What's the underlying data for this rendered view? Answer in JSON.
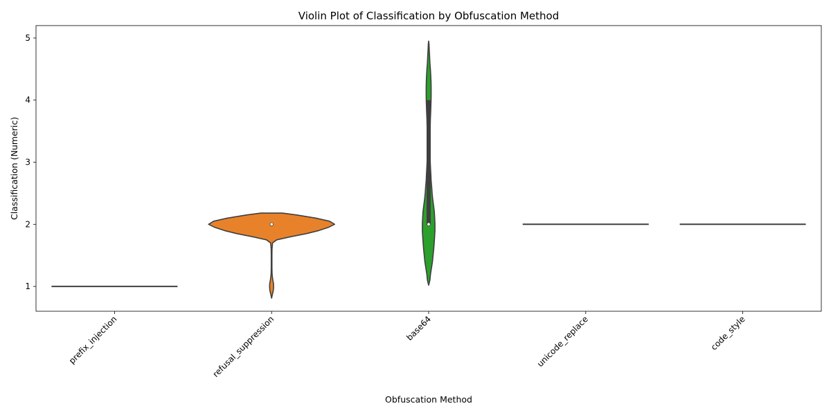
{
  "chart_data": {
    "type": "violin",
    "title": "Violin Plot of Classification by Obfuscation Method",
    "xlabel": "Obfuscation Method",
    "ylabel": "Classification (Numeric)",
    "ylim": [
      0.6,
      5.2
    ],
    "yticks": [
      1,
      2,
      3,
      4,
      5
    ],
    "categories": [
      "prefix_injection",
      "refusal_suppression",
      "base64",
      "unicode_replace",
      "code_style"
    ],
    "grid": false,
    "series": [
      {
        "category": "prefix_injection",
        "color": "#3a78b8",
        "median": 1,
        "q1": 1,
        "q3": 1,
        "degenerate_value": 1,
        "density": []
      },
      {
        "category": "refusal_suppression",
        "color": "#e8822a",
        "median": 2,
        "q1": 2,
        "q3": 2,
        "density": [
          [
            0.81,
            0.0
          ],
          [
            0.86,
            0.01
          ],
          [
            0.9,
            0.02
          ],
          [
            0.95,
            0.03
          ],
          [
            1.0,
            0.032
          ],
          [
            1.05,
            0.03
          ],
          [
            1.1,
            0.02
          ],
          [
            1.15,
            0.013
          ],
          [
            1.2,
            0.008
          ],
          [
            1.3,
            0.006
          ],
          [
            1.4,
            0.006
          ],
          [
            1.5,
            0.006
          ],
          [
            1.6,
            0.007
          ],
          [
            1.7,
            0.015
          ],
          [
            1.75,
            0.08
          ],
          [
            1.8,
            0.3
          ],
          [
            1.85,
            0.55
          ],
          [
            1.9,
            0.75
          ],
          [
            1.95,
            0.9
          ],
          [
            2.0,
            1.0
          ],
          [
            2.05,
            0.92
          ],
          [
            2.1,
            0.7
          ],
          [
            2.15,
            0.4
          ],
          [
            2.18,
            0.17
          ],
          [
            2.18,
            0.0
          ]
        ]
      },
      {
        "category": "base64",
        "color": "#2ca02c",
        "median": 2,
        "q1": 2,
        "q3": 4,
        "density": [
          [
            1.02,
            0.0
          ],
          [
            1.05,
            0.008
          ],
          [
            1.1,
            0.02
          ],
          [
            1.2,
            0.03
          ],
          [
            1.3,
            0.045
          ],
          [
            1.4,
            0.06
          ],
          [
            1.5,
            0.07
          ],
          [
            1.6,
            0.08
          ],
          [
            1.7,
            0.088
          ],
          [
            1.8,
            0.095
          ],
          [
            1.9,
            0.1
          ],
          [
            2.0,
            0.1
          ],
          [
            2.1,
            0.096
          ],
          [
            2.2,
            0.09
          ],
          [
            2.3,
            0.078
          ],
          [
            2.4,
            0.065
          ],
          [
            2.5,
            0.055
          ],
          [
            2.6,
            0.048
          ],
          [
            2.7,
            0.04
          ],
          [
            2.8,
            0.035
          ],
          [
            2.9,
            0.03
          ],
          [
            3.0,
            0.025
          ],
          [
            3.1,
            0.022
          ],
          [
            3.2,
            0.02
          ],
          [
            3.3,
            0.018
          ],
          [
            3.4,
            0.02
          ],
          [
            3.5,
            0.022
          ],
          [
            3.6,
            0.025
          ],
          [
            3.7,
            0.028
          ],
          [
            3.8,
            0.032
          ],
          [
            3.9,
            0.035
          ],
          [
            4.0,
            0.038
          ],
          [
            4.1,
            0.04
          ],
          [
            4.2,
            0.04
          ],
          [
            4.3,
            0.037
          ],
          [
            4.4,
            0.033
          ],
          [
            4.5,
            0.028
          ],
          [
            4.6,
            0.02
          ],
          [
            4.7,
            0.015
          ],
          [
            4.8,
            0.01
          ],
          [
            4.9,
            0.005
          ],
          [
            4.95,
            0.0
          ]
        ]
      },
      {
        "category": "unicode_replace",
        "color": "#d62728",
        "median": 2,
        "q1": 2,
        "q3": 2,
        "degenerate_value": 2,
        "density": []
      },
      {
        "category": "code_style",
        "color": "#9467bd",
        "median": 2,
        "q1": 2,
        "q3": 2,
        "degenerate_value": 2,
        "density": []
      }
    ]
  }
}
